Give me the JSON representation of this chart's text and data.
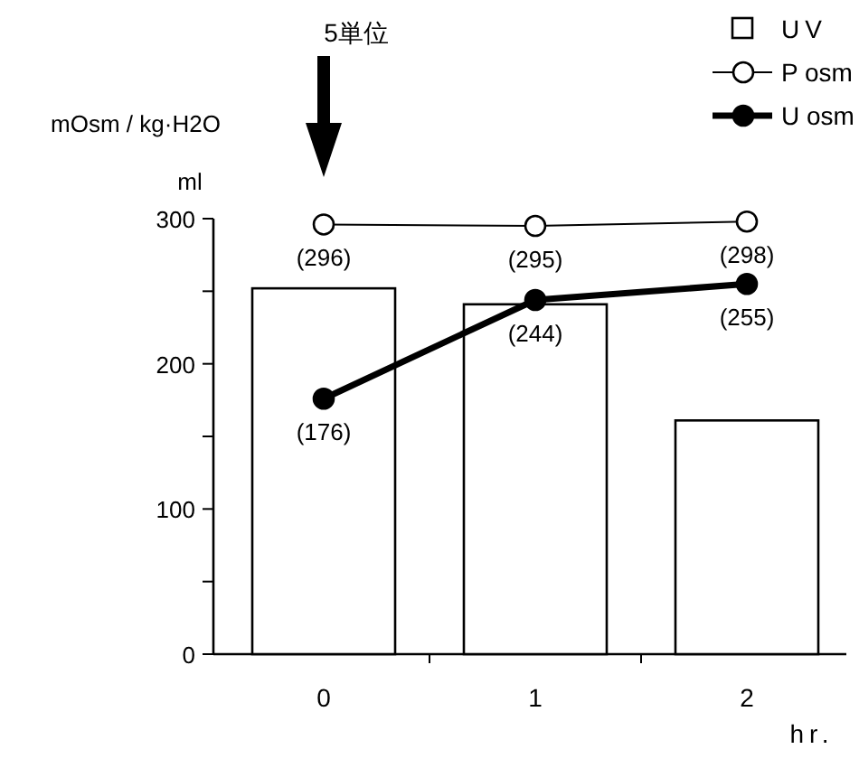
{
  "chart_data": {
    "type": "bar",
    "categories": [
      "0",
      "1",
      "2"
    ],
    "xlabel": "hr.",
    "ylabel": "mOsm / kg·H2O",
    "annotations": [
      "5単位",
      "ml"
    ],
    "ylim": [
      0,
      300
    ],
    "yticks": [
      0,
      {
        "value": 50,
        "label": null
      },
      100,
      {
        "value": 150,
        "label": null
      },
      200,
      {
        "value": 250,
        "label": null
      },
      300
    ],
    "legend": "top right",
    "series": [
      {
        "name": "UV",
        "color": "#ffffff",
        "values": [
          252,
          241,
          161
        ]
      },
      {
        "name": "P osm",
        "type": "line",
        "color": "#000000",
        "marker": "circle",
        "values": [
          296,
          295,
          298
        ],
        "value_labels": [
          "(296)",
          "(295)",
          "(298)"
        ]
      },
      {
        "name": "U osm",
        "type": "line",
        "color": "#000000",
        "marker": "circle",
        "values": [
          176,
          244,
          255
        ],
        "value_labels": [
          "(176)",
          "(244)",
          "(255)"
        ]
      }
    ]
  }
}
